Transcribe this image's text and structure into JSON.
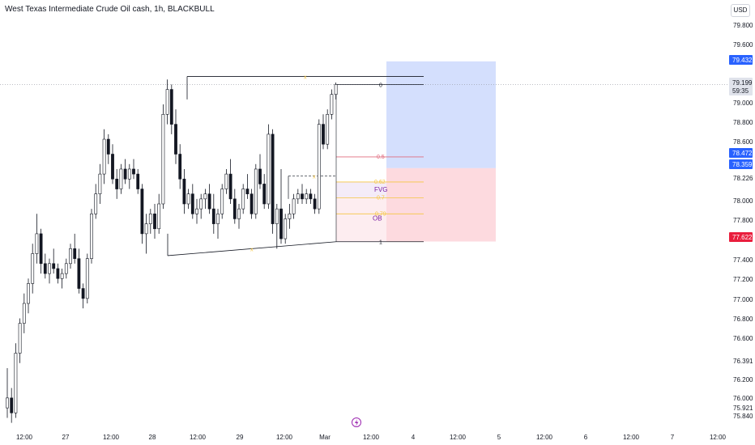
{
  "header": {
    "title": "West Texas Intermediate Crude Oil cash, 1h, BLACKBULL",
    "currency": "USD"
  },
  "colors": {
    "up": "#ffffff",
    "down": "#131722",
    "outline": "#131722",
    "blue_zone": "#cfdcfd",
    "red_zone": "#fdd6db",
    "blue_badge": "#2962ff",
    "red_badge": "#e91e3d",
    "gray_badge": "#9598a1",
    "fib_gold": "#f5c542",
    "fib_red": "#e06b7e",
    "fvg_purple": "#7b1fa2"
  },
  "price_axis": {
    "ticks": [
      "79.800",
      "79.600",
      "79.000",
      "78.800",
      "78.600",
      "78.000",
      "77.800",
      "77.400",
      "77.200",
      "77.000",
      "76.800",
      "76.600",
      "76.200",
      "76.000",
      "75.840"
    ],
    "extra_labels": [
      "78.226",
      "76.391",
      "75.921"
    ],
    "badges": {
      "target": "79.432",
      "current": "79.199",
      "countdown": "59:35",
      "fib05": "78.472",
      "entry": "78.359",
      "stop": "77.622"
    }
  },
  "time_axis": [
    "12:00",
    "27",
    "12:00",
    "28",
    "12:00",
    "29",
    "12:00",
    "Mar",
    "12:00",
    "4",
    "12:00",
    "5",
    "12:00",
    "6",
    "12:00",
    "7",
    "12:00"
  ],
  "annotations": {
    "fib_0": "0",
    "fib_05": "0.5",
    "fib_062": "0.62",
    "fib_07": "0.7",
    "fib_079": "0.79",
    "fib_1": "1",
    "fvg": "FVG",
    "ob": "OB",
    "swing_marker": "x"
  },
  "chart_data": {
    "type": "candlestick",
    "title": "West Texas Intermediate Crude Oil cash, 1h, BLACKBULL",
    "ylim": [
      75.7,
      80.0
    ],
    "candles": [
      {
        "o": 75.95,
        "h": 76.35,
        "l": 75.85,
        "c": 76.05
      },
      {
        "o": 76.05,
        "h": 76.15,
        "l": 75.8,
        "c": 75.9
      },
      {
        "o": 75.9,
        "h": 76.6,
        "l": 75.85,
        "c": 76.5
      },
      {
        "o": 76.5,
        "h": 76.85,
        "l": 76.4,
        "c": 76.8
      },
      {
        "o": 76.8,
        "h": 77.1,
        "l": 76.7,
        "c": 77.0
      },
      {
        "o": 77.0,
        "h": 77.25,
        "l": 76.9,
        "c": 77.2
      },
      {
        "o": 77.2,
        "h": 77.6,
        "l": 77.1,
        "c": 77.5
      },
      {
        "o": 77.5,
        "h": 77.9,
        "l": 77.4,
        "c": 77.7
      },
      {
        "o": 77.7,
        "h": 77.75,
        "l": 77.3,
        "c": 77.4
      },
      {
        "o": 77.4,
        "h": 77.5,
        "l": 77.25,
        "c": 77.3
      },
      {
        "o": 77.3,
        "h": 77.45,
        "l": 77.2,
        "c": 77.4
      },
      {
        "o": 77.4,
        "h": 77.55,
        "l": 77.3,
        "c": 77.35
      },
      {
        "o": 77.35,
        "h": 77.4,
        "l": 77.2,
        "c": 77.25
      },
      {
        "o": 77.25,
        "h": 77.35,
        "l": 77.15,
        "c": 77.3
      },
      {
        "o": 77.3,
        "h": 77.45,
        "l": 77.25,
        "c": 77.4
      },
      {
        "o": 77.4,
        "h": 77.6,
        "l": 77.35,
        "c": 77.55
      },
      {
        "o": 77.55,
        "h": 77.7,
        "l": 77.4,
        "c": 77.45
      },
      {
        "o": 77.45,
        "h": 77.55,
        "l": 77.1,
        "c": 77.15
      },
      {
        "o": 77.15,
        "h": 77.2,
        "l": 76.95,
        "c": 77.05
      },
      {
        "o": 77.05,
        "h": 77.5,
        "l": 77.0,
        "c": 77.45
      },
      {
        "o": 77.45,
        "h": 77.95,
        "l": 77.4,
        "c": 77.9
      },
      {
        "o": 77.9,
        "h": 78.2,
        "l": 77.85,
        "c": 78.1
      },
      {
        "o": 78.1,
        "h": 78.4,
        "l": 78.0,
        "c": 78.3
      },
      {
        "o": 78.3,
        "h": 78.75,
        "l": 78.2,
        "c": 78.65
      },
      {
        "o": 78.65,
        "h": 78.7,
        "l": 78.4,
        "c": 78.5
      },
      {
        "o": 78.5,
        "h": 78.6,
        "l": 78.2,
        "c": 78.25
      },
      {
        "o": 78.25,
        "h": 78.35,
        "l": 78.05,
        "c": 78.15
      },
      {
        "o": 78.15,
        "h": 78.4,
        "l": 78.1,
        "c": 78.35
      },
      {
        "o": 78.35,
        "h": 78.45,
        "l": 78.2,
        "c": 78.25
      },
      {
        "o": 78.25,
        "h": 78.4,
        "l": 78.15,
        "c": 78.35
      },
      {
        "o": 78.35,
        "h": 78.45,
        "l": 78.25,
        "c": 78.3
      },
      {
        "o": 78.3,
        "h": 78.35,
        "l": 78.1,
        "c": 78.15
      },
      {
        "o": 78.15,
        "h": 78.2,
        "l": 77.6,
        "c": 77.7
      },
      {
        "o": 77.7,
        "h": 77.9,
        "l": 77.5,
        "c": 77.8
      },
      {
        "o": 77.8,
        "h": 77.95,
        "l": 77.7,
        "c": 77.9
      },
      {
        "o": 77.9,
        "h": 78.0,
        "l": 77.65,
        "c": 77.75
      },
      {
        "o": 77.75,
        "h": 78.1,
        "l": 77.7,
        "c": 78.0
      },
      {
        "o": 78.0,
        "h": 79.0,
        "l": 77.95,
        "c": 78.9
      },
      {
        "o": 78.9,
        "h": 79.25,
        "l": 78.8,
        "c": 79.15
      },
      {
        "o": 79.15,
        "h": 79.2,
        "l": 78.7,
        "c": 78.8
      },
      {
        "o": 78.8,
        "h": 78.95,
        "l": 78.4,
        "c": 78.5
      },
      {
        "o": 78.5,
        "h": 78.6,
        "l": 78.15,
        "c": 78.25
      },
      {
        "o": 78.25,
        "h": 78.35,
        "l": 77.9,
        "c": 78.0
      },
      {
        "o": 78.0,
        "h": 78.15,
        "l": 77.95,
        "c": 78.1
      },
      {
        "o": 78.1,
        "h": 78.2,
        "l": 77.85,
        "c": 77.9
      },
      {
        "o": 77.9,
        "h": 78.05,
        "l": 77.8,
        "c": 77.95
      },
      {
        "o": 77.95,
        "h": 78.1,
        "l": 77.85,
        "c": 78.05
      },
      {
        "o": 78.05,
        "h": 78.15,
        "l": 77.95,
        "c": 78.1
      },
      {
        "o": 78.1,
        "h": 78.2,
        "l": 77.9,
        "c": 77.95
      },
      {
        "o": 77.95,
        "h": 78.1,
        "l": 77.7,
        "c": 77.8
      },
      {
        "o": 77.8,
        "h": 77.95,
        "l": 77.65,
        "c": 77.9
      },
      {
        "o": 77.9,
        "h": 78.2,
        "l": 77.85,
        "c": 78.15
      },
      {
        "o": 78.15,
        "h": 78.35,
        "l": 78.1,
        "c": 78.3
      },
      {
        "o": 78.3,
        "h": 78.45,
        "l": 78.0,
        "c": 78.05
      },
      {
        "o": 78.05,
        "h": 78.15,
        "l": 77.8,
        "c": 77.85
      },
      {
        "o": 77.85,
        "h": 78.0,
        "l": 77.75,
        "c": 77.95
      },
      {
        "o": 77.95,
        "h": 78.2,
        "l": 77.9,
        "c": 78.15
      },
      {
        "o": 78.15,
        "h": 78.3,
        "l": 78.05,
        "c": 78.1
      },
      {
        "o": 78.1,
        "h": 78.15,
        "l": 77.85,
        "c": 77.9
      },
      {
        "o": 77.9,
        "h": 78.4,
        "l": 77.85,
        "c": 78.35
      },
      {
        "o": 78.35,
        "h": 78.5,
        "l": 78.15,
        "c": 78.2
      },
      {
        "o": 78.2,
        "h": 78.3,
        "l": 77.95,
        "c": 78.0
      },
      {
        "o": 78.0,
        "h": 78.8,
        "l": 77.95,
        "c": 78.7
      },
      {
        "o": 78.7,
        "h": 78.75,
        "l": 77.7,
        "c": 77.8
      },
      {
        "o": 77.8,
        "h": 78.0,
        "l": 77.55,
        "c": 77.95
      },
      {
        "o": 77.95,
        "h": 78.35,
        "l": 77.6,
        "c": 77.65
      },
      {
        "o": 77.65,
        "h": 77.9,
        "l": 77.6,
        "c": 77.85
      },
      {
        "o": 77.85,
        "h": 78.0,
        "l": 77.75,
        "c": 77.9
      },
      {
        "o": 77.9,
        "h": 78.1,
        "l": 77.85,
        "c": 78.05
      },
      {
        "o": 78.05,
        "h": 78.15,
        "l": 78.0,
        "c": 78.1
      },
      {
        "o": 78.1,
        "h": 78.2,
        "l": 78.0,
        "c": 78.05
      },
      {
        "o": 78.05,
        "h": 78.15,
        "l": 78.0,
        "c": 78.1
      },
      {
        "o": 78.1,
        "h": 78.15,
        "l": 78.0,
        "c": 78.05
      },
      {
        "o": 78.05,
        "h": 78.1,
        "l": 77.9,
        "c": 77.95
      },
      {
        "o": 77.95,
        "h": 78.85,
        "l": 77.9,
        "c": 78.8
      },
      {
        "o": 78.8,
        "h": 78.9,
        "l": 78.55,
        "c": 78.6
      },
      {
        "o": 78.6,
        "h": 78.95,
        "l": 78.55,
        "c": 78.9
      },
      {
        "o": 78.9,
        "h": 79.15,
        "l": 78.85,
        "c": 79.1
      },
      {
        "o": 79.1,
        "h": 79.22,
        "l": 79.05,
        "c": 79.2
      }
    ],
    "levels": {
      "fib_0": 79.2,
      "fib_05": 78.472,
      "fib_062": 78.22,
      "fib_07": 78.06,
      "fib_079": 77.9,
      "fib_1": 77.62,
      "target": 79.432,
      "entry": 78.359,
      "stop": 77.622
    }
  }
}
